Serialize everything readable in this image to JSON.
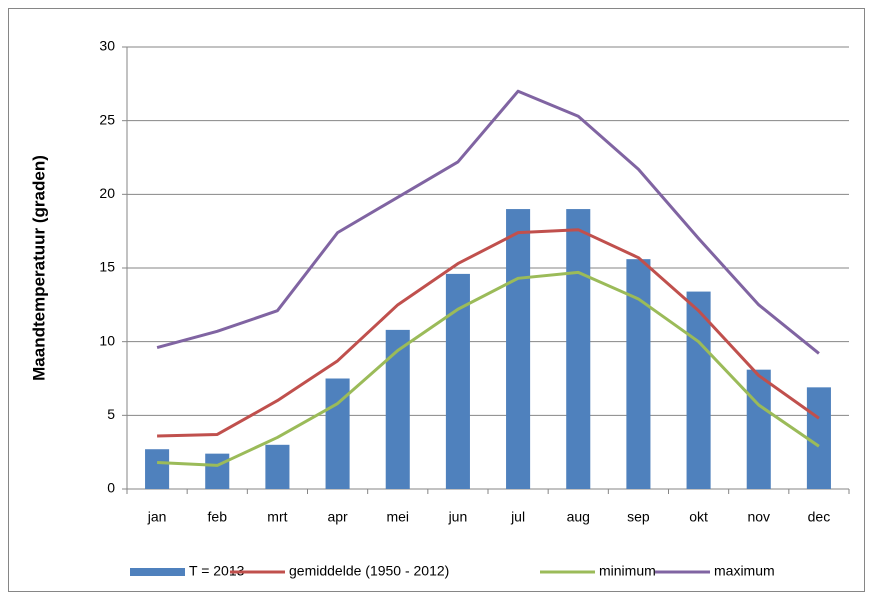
{
  "chart_data": {
    "type": "bar",
    "y_label": "Maandtemperatuur (graden)",
    "categories": [
      "jan",
      "feb",
      "mrt",
      "apr",
      "mei",
      "jun",
      "jul",
      "aug",
      "sep",
      "okt",
      "nov",
      "dec"
    ],
    "series": [
      {
        "name": "T = 2013",
        "type": "bar",
        "color": "#4f81bd",
        "values": [
          2.7,
          2.4,
          3.0,
          7.5,
          10.8,
          14.6,
          19.0,
          19.0,
          15.6,
          13.4,
          8.1,
          6.9
        ]
      },
      {
        "name": "gemiddelde (1950 - 2012)",
        "type": "line",
        "color": "#c0504d",
        "values": [
          3.6,
          3.7,
          6.0,
          8.7,
          12.5,
          15.3,
          17.4,
          17.6,
          15.7,
          12.1,
          7.7,
          4.8
        ]
      },
      {
        "name": "minimum",
        "type": "line",
        "color": "#9bbb59",
        "values": [
          1.8,
          1.6,
          3.5,
          5.8,
          9.4,
          12.2,
          14.3,
          14.7,
          12.9,
          10.0,
          5.7,
          2.9
        ]
      },
      {
        "name": "maximum",
        "type": "line",
        "color": "#8064a2",
        "values": [
          9.6,
          10.7,
          12.1,
          17.4,
          19.8,
          22.2,
          27.0,
          25.3,
          21.7,
          17.0,
          12.5,
          9.2
        ]
      }
    ],
    "ylim": [
      0,
      30
    ],
    "yticks": [
      0,
      5,
      10,
      15,
      20,
      25,
      30
    ],
    "grid": true
  }
}
